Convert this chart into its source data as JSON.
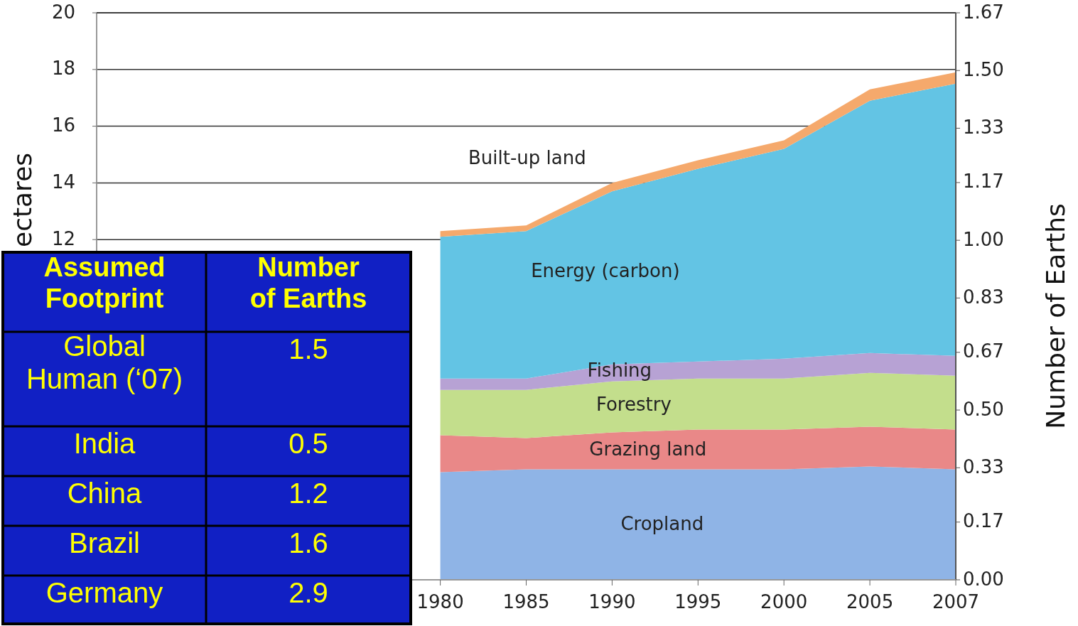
{
  "chart_data": [
    {
      "type": "area",
      "stacked": true,
      "ylabel": "ectares",
      "y2label": "Number of Earths",
      "categories": [
        null,
        null,
        null,
        null,
        "1980",
        "1985",
        "1990",
        "1995",
        "2000",
        "2005",
        "2007"
      ],
      "ylim": [
        0,
        20
      ],
      "yticks": [
        12,
        14,
        16,
        18,
        20
      ],
      "y2lim": [
        0,
        1.67
      ],
      "y2ticks": [
        {
          "value": 0,
          "label": "0.00"
        },
        0.17,
        0.33,
        {
          "value": 0.5,
          "label": "0.50"
        },
        0.67,
        0.83,
        {
          "value": 1,
          "label": "1.00"
        },
        1.17,
        1.33,
        {
          "value": 1.5,
          "label": "1.50"
        },
        1.67
      ],
      "grid": "y",
      "series": [
        {
          "name": "Cropland",
          "color": "#8fb4e6",
          "values": [
            null,
            null,
            null,
            null,
            3.8,
            3.9,
            3.9,
            3.9,
            3.9,
            4.0,
            3.9
          ]
        },
        {
          "name": "Grazing land",
          "color": "#e98888",
          "values": [
            null,
            null,
            null,
            null,
            1.3,
            1.1,
            1.3,
            1.4,
            1.4,
            1.4,
            1.4
          ]
        },
        {
          "name": "Forestry",
          "color": "#c3de8c",
          "values": [
            null,
            null,
            null,
            null,
            1.6,
            1.7,
            1.8,
            1.8,
            1.8,
            1.9,
            1.9
          ]
        },
        {
          "name": "Fishing",
          "color": "#b7a2d4",
          "values": [
            null,
            null,
            null,
            null,
            0.4,
            0.4,
            0.6,
            0.6,
            0.7,
            0.7,
            0.7
          ]
        },
        {
          "name": "Energy (carbon)",
          "color": "#63c4e4",
          "values": [
            null,
            null,
            null,
            null,
            5.0,
            5.2,
            6.1,
            6.8,
            7.4,
            8.9,
            9.6
          ]
        },
        {
          "name": "Built-up land",
          "color": "#f5a96c",
          "values": [
            null,
            null,
            null,
            null,
            0.2,
            0.2,
            0.3,
            0.3,
            0.3,
            0.4,
            0.4
          ]
        }
      ]
    },
    {
      "type": "other",
      "annotations": [
        "Assumed Footprint",
        "Number of Earths",
        "Global Human (‘07)",
        "1.5",
        "India",
        "0.5",
        "China",
        "1.2",
        "Brazil",
        "1.6",
        "Germany",
        "2.9"
      ]
    }
  ]
}
